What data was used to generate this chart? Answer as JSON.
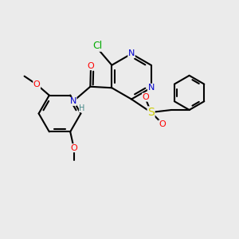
{
  "background_color": "#ebebeb",
  "bond_color": "#000000",
  "bond_width": 1.5,
  "atom_colors": {
    "C": "#000000",
    "N": "#0000cc",
    "O": "#ff0000",
    "S": "#cccc00",
    "Cl": "#00aa00",
    "H": "#448888"
  },
  "font_size": 8,
  "fig_width": 3.0,
  "fig_height": 3.0,
  "dpi": 100,
  "xlim": [
    0,
    10
  ],
  "ylim": [
    0,
    10
  ]
}
